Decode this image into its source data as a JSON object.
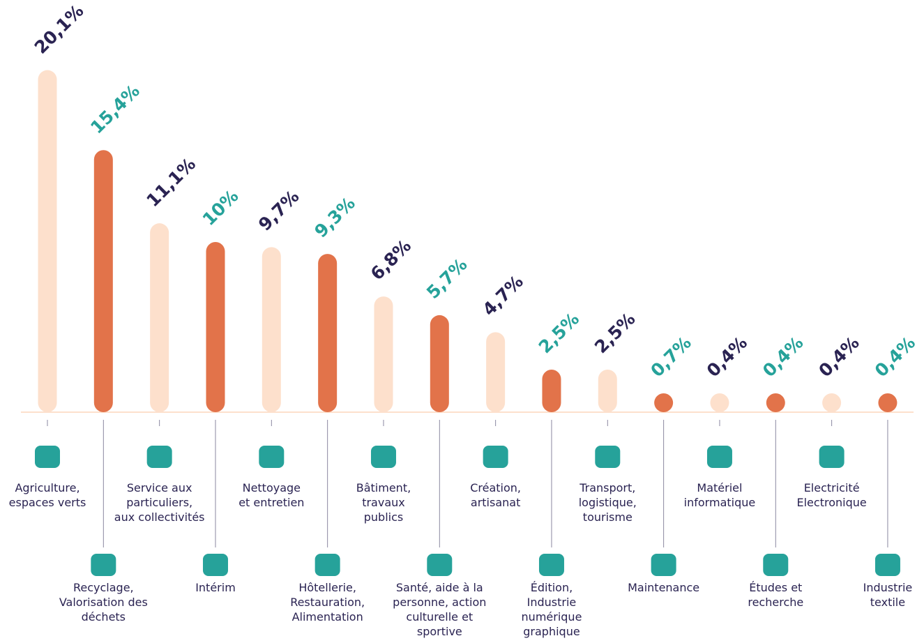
{
  "chart_data": {
    "type": "bar",
    "categories": [
      [
        "Agriculture,",
        "espaces verts"
      ],
      [
        "Recyclage,",
        "Valorisation des",
        "déchets"
      ],
      [
        "Service aux",
        "particuliers,",
        "aux collectivités"
      ],
      [
        "Intérim"
      ],
      [
        "Nettoyage",
        "et entretien"
      ],
      [
        "Hôtellerie,",
        "Restauration,",
        "Alimentation"
      ],
      [
        "Bâtiment,",
        "travaux",
        "publics"
      ],
      [
        "Santé, aide à la",
        "personne, action",
        "culturelle et",
        "sportive"
      ],
      [
        "Création,",
        "artisanat"
      ],
      [
        "Édition,",
        "Industrie",
        "numérique",
        "graphique"
      ],
      [
        "Transport,",
        "logistique,",
        "tourisme"
      ],
      [
        "Maintenance"
      ],
      [
        "Matériel",
        "informatique"
      ],
      [
        "Études et",
        "recherche"
      ],
      [
        "Electricité",
        "Electronique"
      ],
      [
        "Industrie",
        "textile"
      ]
    ],
    "values": [
      20.1,
      15.4,
      11.1,
      10,
      9.7,
      9.3,
      6.8,
      5.7,
      4.7,
      2.5,
      2.5,
      0.7,
      0.4,
      0.4,
      0.4,
      0.4
    ],
    "value_labels": [
      "20,1%",
      "15,4%",
      "11,1%",
      "10%",
      "9,7%",
      "9,3%",
      "6,8%",
      "5,7%",
      "4,7%",
      "2,5%",
      "2,5%",
      "0,7%",
      "0,4%",
      "0,4%",
      "0,4%",
      "0,4%"
    ],
    "colors": [
      "#fde0cc",
      "#e2734a",
      "#fde0cc",
      "#e2734a",
      "#fde0cc",
      "#e2734a",
      "#fde0cc",
      "#e2734a",
      "#fde0cc",
      "#e2734a",
      "#fde0cc",
      "#e2734a",
      "#fde0cc",
      "#e2734a",
      "#fde0cc",
      "#e2734a"
    ],
    "label_colors": [
      "#2a2352",
      "#26a29a",
      "#2a2352",
      "#26a29a",
      "#2a2352",
      "#26a29a",
      "#2a2352",
      "#26a29a",
      "#2a2352",
      "#26a29a",
      "#2a2352",
      "#26a29a",
      "#2a2352",
      "#26a29a",
      "#2a2352",
      "#26a29a"
    ]
  }
}
